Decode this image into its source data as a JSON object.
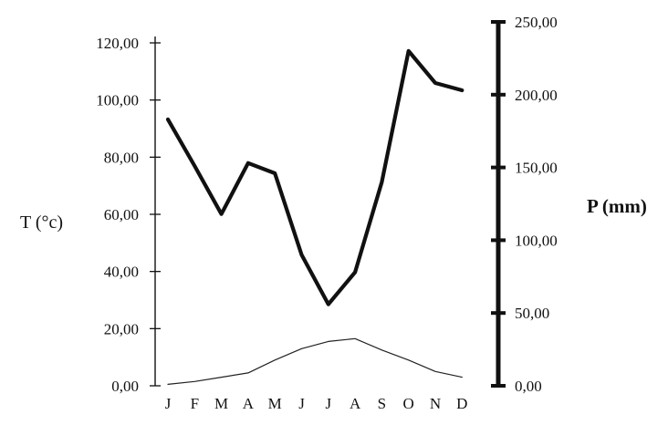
{
  "chart_data": {
    "type": "line",
    "categories": [
      "J",
      "F",
      "M",
      "A",
      "M",
      "J",
      "J",
      "A",
      "S",
      "O",
      "N",
      "D"
    ],
    "y_left": {
      "label": "T (°c)",
      "ticks": [
        "0,00",
        "20,00",
        "40,00",
        "60,00",
        "80,00",
        "100,00",
        "120,00"
      ],
      "range": [
        0,
        120
      ]
    },
    "y_right": {
      "label": "P (mm)",
      "ticks": [
        "0,00",
        "50,00",
        "100,00",
        "150,00",
        "200,00",
        "250,00"
      ],
      "range": [
        0,
        250
      ]
    },
    "series": [
      {
        "axis": "right",
        "color": "#111111",
        "values": [
          183,
          151,
          118,
          153,
          146,
          90,
          56,
          78,
          140,
          230,
          208,
          203
        ]
      },
      {
        "axis": "left",
        "color": "#222222",
        "values": [
          0.5,
          1.5,
          3,
          4.5,
          9,
          13,
          15.5,
          16.5,
          12.5,
          9,
          5,
          3
        ]
      }
    ],
    "grid": false,
    "legend": "none"
  }
}
